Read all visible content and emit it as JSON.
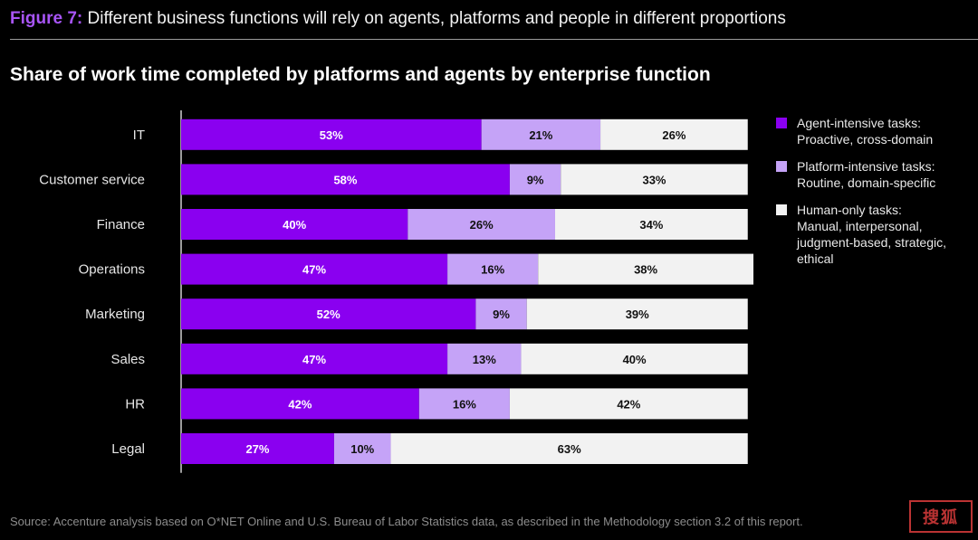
{
  "header": {
    "figure_number": "Figure 7:",
    "figure_title": "Different business functions will rely on agents, platforms and people in different proportions"
  },
  "chart_title": "Share of work time completed by platforms and agents by enterprise function",
  "legend": {
    "items": [
      {
        "color": "#8a00f0",
        "line1": "Agent-intensive tasks:",
        "line2": "Proactive, cross-domain",
        "line3": "",
        "line4": ""
      },
      {
        "color": "#c5a3f7",
        "line1": "Platform-intensive tasks:",
        "line2": "Routine, domain-specific",
        "line3": "",
        "line4": ""
      },
      {
        "color": "#f2f2f2",
        "line1": "Human-only tasks:",
        "line2": "Manual, interpersonal,",
        "line3": "judgment-based, strategic,",
        "line4": "ethical"
      }
    ]
  },
  "chart_data": {
    "type": "bar",
    "orientation": "horizontal",
    "stacked": true,
    "title": "Share of work time completed by platforms and agents by enterprise function",
    "categories": [
      "IT",
      "Customer service",
      "Finance",
      "Operations",
      "Marketing",
      "Sales",
      "HR",
      "Legal"
    ],
    "series": [
      {
        "name": "Agent-intensive tasks: Proactive, cross-domain",
        "color": "#8a00f0",
        "label_color": "#ffffff",
        "values": [
          53,
          58,
          40,
          47,
          52,
          47,
          42,
          27
        ]
      },
      {
        "name": "Platform-intensive tasks: Routine, domain-specific",
        "color": "#c5a3f7",
        "label_color": "#111111",
        "values": [
          21,
          9,
          26,
          16,
          9,
          13,
          16,
          10
        ]
      },
      {
        "name": "Human-only tasks: Manual, interpersonal, judgment-based, strategic, ethical",
        "color": "#f2f2f2",
        "label_color": "#111111",
        "values": [
          26,
          33,
          34,
          38,
          39,
          40,
          42,
          63
        ]
      }
    ],
    "value_suffix": "%",
    "xlim": [
      0,
      101
    ],
    "legend_position": "right"
  },
  "source": "Source: Accenture analysis based on O*NET Online and U.S. Bureau of Labor Statistics data, as described in the Methodology section 3.2 of this report.",
  "stamp_text": "搜狐"
}
